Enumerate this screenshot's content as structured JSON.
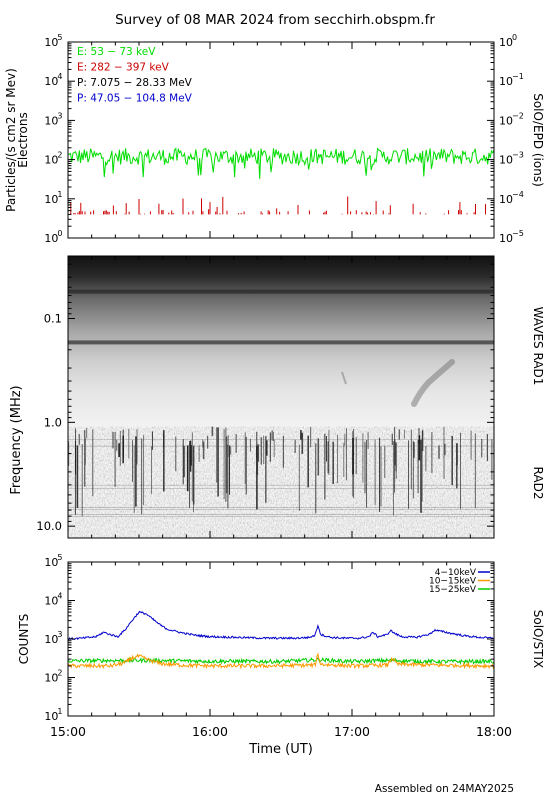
{
  "title": "Survey of 08 MAR 2024 from secchirh.obspm.fr",
  "footer": "Assembled on 24MAY2025",
  "chart_data": [
    {
      "type": "line",
      "panel": "SolO/EPD",
      "ylabel_left": [
        "Particles/(s cm2 sr Mev)",
        "Electrons"
      ],
      "ylabel_right": "SolO/EPD (ions)",
      "y_scale": "log",
      "ylim": [
        1,
        100000
      ],
      "y_ticks": [
        {
          "value": 1,
          "base": "10",
          "exp": "0"
        },
        {
          "value": 10,
          "base": "10",
          "exp": "1"
        },
        {
          "value": 100,
          "base": "10",
          "exp": "2"
        },
        {
          "value": 1000,
          "base": "10",
          "exp": "3"
        },
        {
          "value": 10000,
          "base": "10",
          "exp": "4"
        },
        {
          "value": 100000,
          "base": "10",
          "exp": "5"
        }
      ],
      "y_ticks_right": [
        {
          "value": 1,
          "base": "10",
          "exp": "−5"
        },
        {
          "value": 10,
          "base": "10",
          "exp": "−4"
        },
        {
          "value": 100,
          "base": "10",
          "exp": "−3"
        },
        {
          "value": 1000,
          "base": "10",
          "exp": "−2"
        },
        {
          "value": 10000,
          "base": "10",
          "exp": "−1"
        },
        {
          "value": 100000,
          "base": "10",
          "exp": "0"
        }
      ],
      "xlim": [
        15.0,
        18.0
      ],
      "legend": [
        {
          "name": "E: 53 − 73 keV",
          "color": "#00dd00"
        },
        {
          "name": "E: 282 − 397 keV",
          "color": "#cc0000"
        },
        {
          "name": "P: 7.075 − 28.33 MeV",
          "color": "#000000"
        },
        {
          "name": "P: 47.05 − 104.8 MeV",
          "color": "#0000cc"
        }
      ],
      "series": [
        {
          "name": "E: 53 − 73 keV",
          "color": "#00dd00",
          "typical": 120,
          "min": 30,
          "max": 230
        },
        {
          "name": "E: 282 − 397 keV",
          "color": "#cc0000",
          "typical": 5,
          "min": 4,
          "max": 12
        }
      ]
    },
    {
      "type": "heatmap",
      "panel": "WAVES",
      "labels_right": [
        "WAVES RAD1",
        "RAD2"
      ],
      "ylabel": "Frequency (MHz)",
      "y_scale": "log",
      "y_inverted": true,
      "ylim": [
        0.025,
        13.0
      ],
      "y_ticks": [
        {
          "value": 0.1,
          "label": "0.1"
        },
        {
          "value": 1.0,
          "label": "1.0"
        },
        {
          "value": 10.0,
          "label": "10.0"
        }
      ],
      "xlim": [
        15.0,
        18.0
      ],
      "bands_mhz": [
        {
          "freq": 0.055,
          "note": "dark band"
        },
        {
          "freq": 0.17,
          "note": "dark band"
        }
      ],
      "rad1_rad2_boundary_mhz": 1.1
    },
    {
      "type": "line",
      "panel": "SolO/STIX",
      "ylabel": "COUNTS",
      "label_right": "SolO/STIX",
      "y_scale": "log",
      "ylim": [
        10,
        100000
      ],
      "y_ticks": [
        {
          "value": 10,
          "base": "10",
          "exp": "1"
        },
        {
          "value": 100,
          "base": "10",
          "exp": "2"
        },
        {
          "value": 1000,
          "base": "10",
          "exp": "3"
        },
        {
          "value": 10000,
          "base": "10",
          "exp": "4"
        },
        {
          "value": 100000,
          "base": "10",
          "exp": "5"
        }
      ],
      "xlim": [
        15.0,
        18.0
      ],
      "xlabel": "Time (UT)",
      "x_ticks": [
        {
          "value": 15.0,
          "label": "15:00"
        },
        {
          "value": 16.0,
          "label": "16:00"
        },
        {
          "value": 17.0,
          "label": "17:00"
        },
        {
          "value": 18.0,
          "label": "18:00"
        }
      ],
      "legend": [
        {
          "name": "4−10keV",
          "color": "#0000cc"
        },
        {
          "name": "10−15keV",
          "color": "#ff9900"
        },
        {
          "name": "15−25keV",
          "color": "#00cc00"
        }
      ],
      "series": [
        {
          "name": "4−10keV",
          "color": "#0000cc",
          "x": [
            15.0,
            15.1,
            15.2,
            15.25,
            15.3,
            15.35,
            15.4,
            15.45,
            15.5,
            15.55,
            15.6,
            15.65,
            15.7,
            15.8,
            15.9,
            16.0,
            16.2,
            16.4,
            16.6,
            16.7,
            16.74,
            16.76,
            16.78,
            16.85,
            16.95,
            17.05,
            17.12,
            17.15,
            17.18,
            17.25,
            17.27,
            17.3,
            17.35,
            17.45,
            17.55,
            17.58,
            17.62,
            17.7,
            17.8,
            17.9,
            18.0
          ],
          "y": [
            1000,
            1050,
            1150,
            1500,
            1300,
            1150,
            1700,
            3000,
            5000,
            4500,
            3200,
            2300,
            1800,
            1450,
            1250,
            1150,
            1100,
            1050,
            1050,
            1100,
            1250,
            2300,
            1300,
            1100,
            1050,
            1050,
            1150,
            1500,
            1150,
            1300,
            1700,
            1400,
            1150,
            1100,
            1350,
            1700,
            1600,
            1400,
            1200,
            1100,
            1050
          ]
        },
        {
          "name": "10−15keV",
          "color": "#ff9900",
          "x": [
            15.0,
            15.3,
            15.4,
            15.45,
            15.5,
            15.55,
            15.65,
            15.8,
            16.0,
            16.4,
            16.74,
            16.76,
            16.78,
            17.0,
            17.25,
            17.28,
            17.32,
            17.6,
            18.0
          ],
          "y": [
            200,
            200,
            240,
            320,
            360,
            300,
            230,
            210,
            200,
            200,
            210,
            390,
            220,
            200,
            210,
            320,
            220,
            210,
            200
          ]
        },
        {
          "name": "15−25keV",
          "color": "#00cc00",
          "x": [
            15.0,
            15.5,
            16.0,
            16.5,
            16.76,
            17.0,
            17.28,
            17.5,
            18.0
          ],
          "y": [
            270,
            280,
            265,
            260,
            290,
            260,
            280,
            260,
            260
          ]
        }
      ]
    }
  ]
}
